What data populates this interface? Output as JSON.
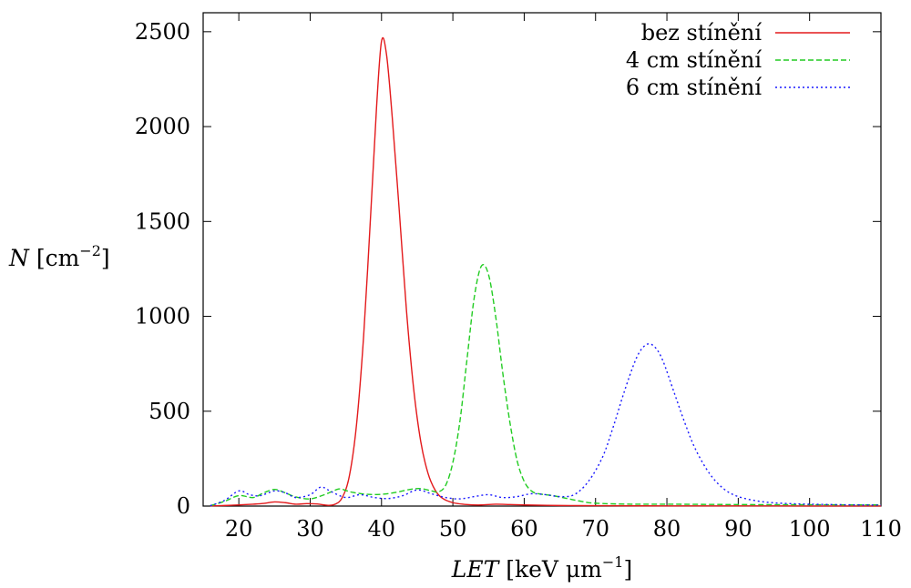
{
  "chart_data": {
    "type": "line",
    "xlabel": "LET [keV μm⁻¹]",
    "xlabel_main": "LET",
    "xlabel_unit": " [keV μm",
    "xlabel_exp": "−1",
    "xlabel_close": "]",
    "ylabel": "N [cm⁻²]",
    "ylabel_main": "N",
    "ylabel_unit": " [cm",
    "ylabel_exp": "−2",
    "ylabel_close": "]",
    "xlim": [
      15,
      110
    ],
    "ylim": [
      0,
      2600
    ],
    "xticks": [
      20,
      30,
      40,
      50,
      60,
      70,
      80,
      90,
      100,
      110
    ],
    "yticks": [
      0,
      500,
      1000,
      1500,
      2000,
      2500
    ],
    "grid": false,
    "legend_position": "top-right",
    "series": [
      {
        "name": "bez stínění",
        "color": "#e31a1c",
        "style": "solid",
        "points": [
          [
            16,
            1
          ],
          [
            18,
            3
          ],
          [
            20,
            6
          ],
          [
            22,
            10
          ],
          [
            23.5,
            14
          ],
          [
            25,
            22
          ],
          [
            26.5,
            18
          ],
          [
            28,
            10
          ],
          [
            29.5,
            13
          ],
          [
            31,
            11
          ],
          [
            32.5,
            4
          ],
          [
            33.5,
            10
          ],
          [
            34.5,
            45
          ],
          [
            35.5,
            160
          ],
          [
            36.5,
            430
          ],
          [
            37.5,
            900
          ],
          [
            38.5,
            1550
          ],
          [
            39.3,
            2100
          ],
          [
            40,
            2450
          ],
          [
            40.7,
            2380
          ],
          [
            41.5,
            2050
          ],
          [
            42.5,
            1550
          ],
          [
            43.5,
            1030
          ],
          [
            44.5,
            620
          ],
          [
            45.5,
            340
          ],
          [
            46.5,
            175
          ],
          [
            47.5,
            85
          ],
          [
            48.5,
            42
          ],
          [
            50,
            18
          ],
          [
            52,
            8
          ],
          [
            54,
            6
          ],
          [
            56,
            10
          ],
          [
            58,
            8
          ],
          [
            60,
            6
          ],
          [
            65,
            3
          ],
          [
            70,
            2
          ],
          [
            80,
            1
          ],
          [
            90,
            1
          ],
          [
            100,
            0.5
          ],
          [
            110,
            0.5
          ]
        ]
      },
      {
        "name": "4 cm stínění",
        "color": "#22cc22",
        "style": "dashed",
        "points": [
          [
            16,
            2
          ],
          [
            18,
            25
          ],
          [
            20,
            55
          ],
          [
            22,
            45
          ],
          [
            23.5,
            70
          ],
          [
            25,
            88
          ],
          [
            26.5,
            70
          ],
          [
            28,
            48
          ],
          [
            30,
            38
          ],
          [
            32,
            60
          ],
          [
            34,
            90
          ],
          [
            35,
            82
          ],
          [
            36,
            72
          ],
          [
            38,
            62
          ],
          [
            40,
            62
          ],
          [
            42,
            72
          ],
          [
            44,
            88
          ],
          [
            45.5,
            92
          ],
          [
            47,
            80
          ],
          [
            48,
            75
          ],
          [
            49,
            110
          ],
          [
            50,
            230
          ],
          [
            51,
            450
          ],
          [
            52,
            780
          ],
          [
            53,
            1100
          ],
          [
            54,
            1265
          ],
          [
            55,
            1220
          ],
          [
            56,
            1000
          ],
          [
            57,
            700
          ],
          [
            58,
            440
          ],
          [
            59,
            240
          ],
          [
            60,
            130
          ],
          [
            61,
            80
          ],
          [
            62,
            65
          ],
          [
            64,
            55
          ],
          [
            66,
            40
          ],
          [
            68,
            25
          ],
          [
            70,
            15
          ],
          [
            75,
            10
          ],
          [
            80,
            10
          ],
          [
            90,
            8
          ],
          [
            100,
            7
          ],
          [
            110,
            6
          ]
        ]
      },
      {
        "name": "6 cm stínění",
        "color": "#1a1aff",
        "style": "dotted",
        "points": [
          [
            16,
            2
          ],
          [
            18,
            30
          ],
          [
            20,
            80
          ],
          [
            21.5,
            60
          ],
          [
            23,
            55
          ],
          [
            25,
            80
          ],
          [
            26.5,
            70
          ],
          [
            28,
            45
          ],
          [
            30,
            60
          ],
          [
            31.5,
            100
          ],
          [
            33,
            75
          ],
          [
            35,
            45
          ],
          [
            37,
            60
          ],
          [
            39,
            45
          ],
          [
            41,
            40
          ],
          [
            43,
            55
          ],
          [
            45,
            85
          ],
          [
            47,
            65
          ],
          [
            49,
            45
          ],
          [
            51,
            38
          ],
          [
            53,
            50
          ],
          [
            55,
            60
          ],
          [
            57,
            45
          ],
          [
            59,
            50
          ],
          [
            61,
            65
          ],
          [
            63,
            60
          ],
          [
            65,
            50
          ],
          [
            67,
            60
          ],
          [
            69,
            130
          ],
          [
            71,
            260
          ],
          [
            72.5,
            420
          ],
          [
            74,
            600
          ],
          [
            75.5,
            760
          ],
          [
            76.5,
            830
          ],
          [
            77.5,
            855
          ],
          [
            78.5,
            830
          ],
          [
            79.5,
            760
          ],
          [
            81,
            600
          ],
          [
            82.5,
            440
          ],
          [
            84,
            300
          ],
          [
            86,
            170
          ],
          [
            88,
            90
          ],
          [
            90,
            50
          ],
          [
            93,
            25
          ],
          [
            96,
            15
          ],
          [
            100,
            10
          ],
          [
            105,
            7
          ],
          [
            110,
            5
          ]
        ]
      }
    ]
  }
}
